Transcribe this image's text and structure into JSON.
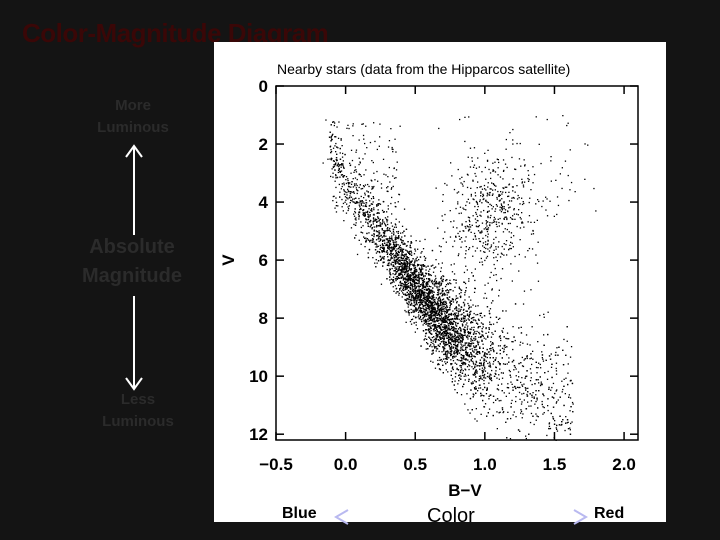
{
  "slide": {
    "title": "Color-Magnitude Diagram",
    "subtitle": "Nearby stars (data from  the Hipparcos satellite)"
  },
  "left_axis": {
    "top_label_1": "More",
    "top_label_2": "Luminous",
    "middle_label_1": "Absolute",
    "middle_label_2": "Magnitude",
    "bottom_label_1": "Less",
    "bottom_label_2": "Luminous",
    "arrow_color": "#ffffff"
  },
  "bottom_axis": {
    "left_label": "Blue",
    "middle_label": "Color",
    "right_label": "Red"
  },
  "colors": {
    "background": "#141414",
    "title": "#3a0707",
    "panel": "#ffffff",
    "points": "#000000"
  },
  "chart_data": {
    "type": "scatter",
    "xlabel": "B−V",
    "ylabel": "V",
    "xlim": [
      -0.5,
      2.1
    ],
    "ylim": [
      12.2,
      0
    ],
    "y_inverted": true,
    "x_ticks": [
      "−0.5",
      "0.0",
      "0.5",
      "1.0",
      "1.5",
      "2.0"
    ],
    "x_tick_values": [
      -0.5,
      0.0,
      0.5,
      1.0,
      1.5,
      2.0
    ],
    "y_ticks": [
      "0",
      "2",
      "4",
      "6",
      "8",
      "10",
      "12"
    ],
    "y_tick_values": [
      0,
      2,
      4,
      6,
      8,
      10,
      12
    ],
    "grid": false,
    "main_sequence_ridge": {
      "x": [
        -0.1,
        0.0,
        0.2,
        0.4,
        0.6,
        0.8,
        1.0,
        1.2,
        1.4,
        1.6
      ],
      "y": [
        2.0,
        3.5,
        4.8,
        6.2,
        7.6,
        8.6,
        9.4,
        10.0,
        10.5,
        11.0
      ]
    },
    "giant_branch_center": {
      "x": 1.05,
      "y": 4.5
    },
    "approx_point_count": 4500
  }
}
